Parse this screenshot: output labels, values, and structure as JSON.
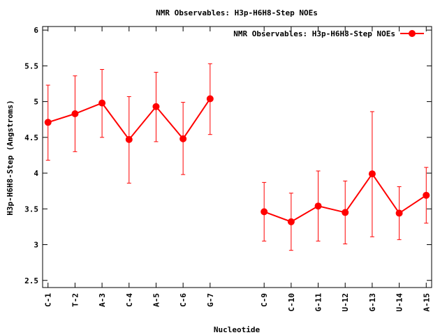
{
  "chart_data": {
    "type": "line",
    "title": "NMR Observables: H3p-H6H8-Step NOEs",
    "xlabel": "Nucleotide",
    "ylabel": "H3p-H6H8-Step (Angstroms)",
    "ylim": [
      2.4,
      6.05
    ],
    "yticks": [
      "2.5",
      "3",
      "3.5",
      "4",
      "4.5",
      "5",
      "5.5",
      "6"
    ],
    "grid": false,
    "legend_position": "top-right",
    "color": "#ff0000",
    "categories": [
      "C-1",
      "T-2",
      "A-3",
      "C-4",
      "A-5",
      "C-6",
      "G-7",
      "C-9",
      "C-10",
      "G-11",
      "U-12",
      "G-13",
      "U-14",
      "A-15"
    ],
    "x": [
      1,
      2,
      3,
      4,
      5,
      6,
      7,
      9,
      10,
      11,
      12,
      13,
      14,
      15
    ],
    "xlim": [
      0.8,
      15.2
    ],
    "series": [
      {
        "name": "NMR Observables: H3p-H6H8-Step NOEs",
        "segments": [
          {
            "x": [
              1,
              2,
              3,
              4,
              5,
              6,
              7
            ],
            "values": [
              4.71,
              4.83,
              4.98,
              4.47,
              4.93,
              4.48,
              5.04
            ],
            "err_low": [
              4.18,
              4.3,
              4.5,
              3.86,
              4.44,
              3.98,
              4.54
            ],
            "err_high": [
              5.23,
              5.36,
              5.45,
              5.07,
              5.41,
              4.99,
              5.53
            ]
          },
          {
            "x": [
              9,
              10,
              11,
              12,
              13,
              14,
              15
            ],
            "values": [
              3.46,
              3.32,
              3.54,
              3.45,
              3.99,
              3.44,
              3.69
            ],
            "err_low": [
              3.05,
              2.92,
              3.05,
              3.01,
              3.11,
              3.07,
              3.3
            ],
            "err_high": [
              3.87,
              3.72,
              4.03,
              3.89,
              4.86,
              3.81,
              4.08
            ]
          }
        ]
      }
    ]
  }
}
